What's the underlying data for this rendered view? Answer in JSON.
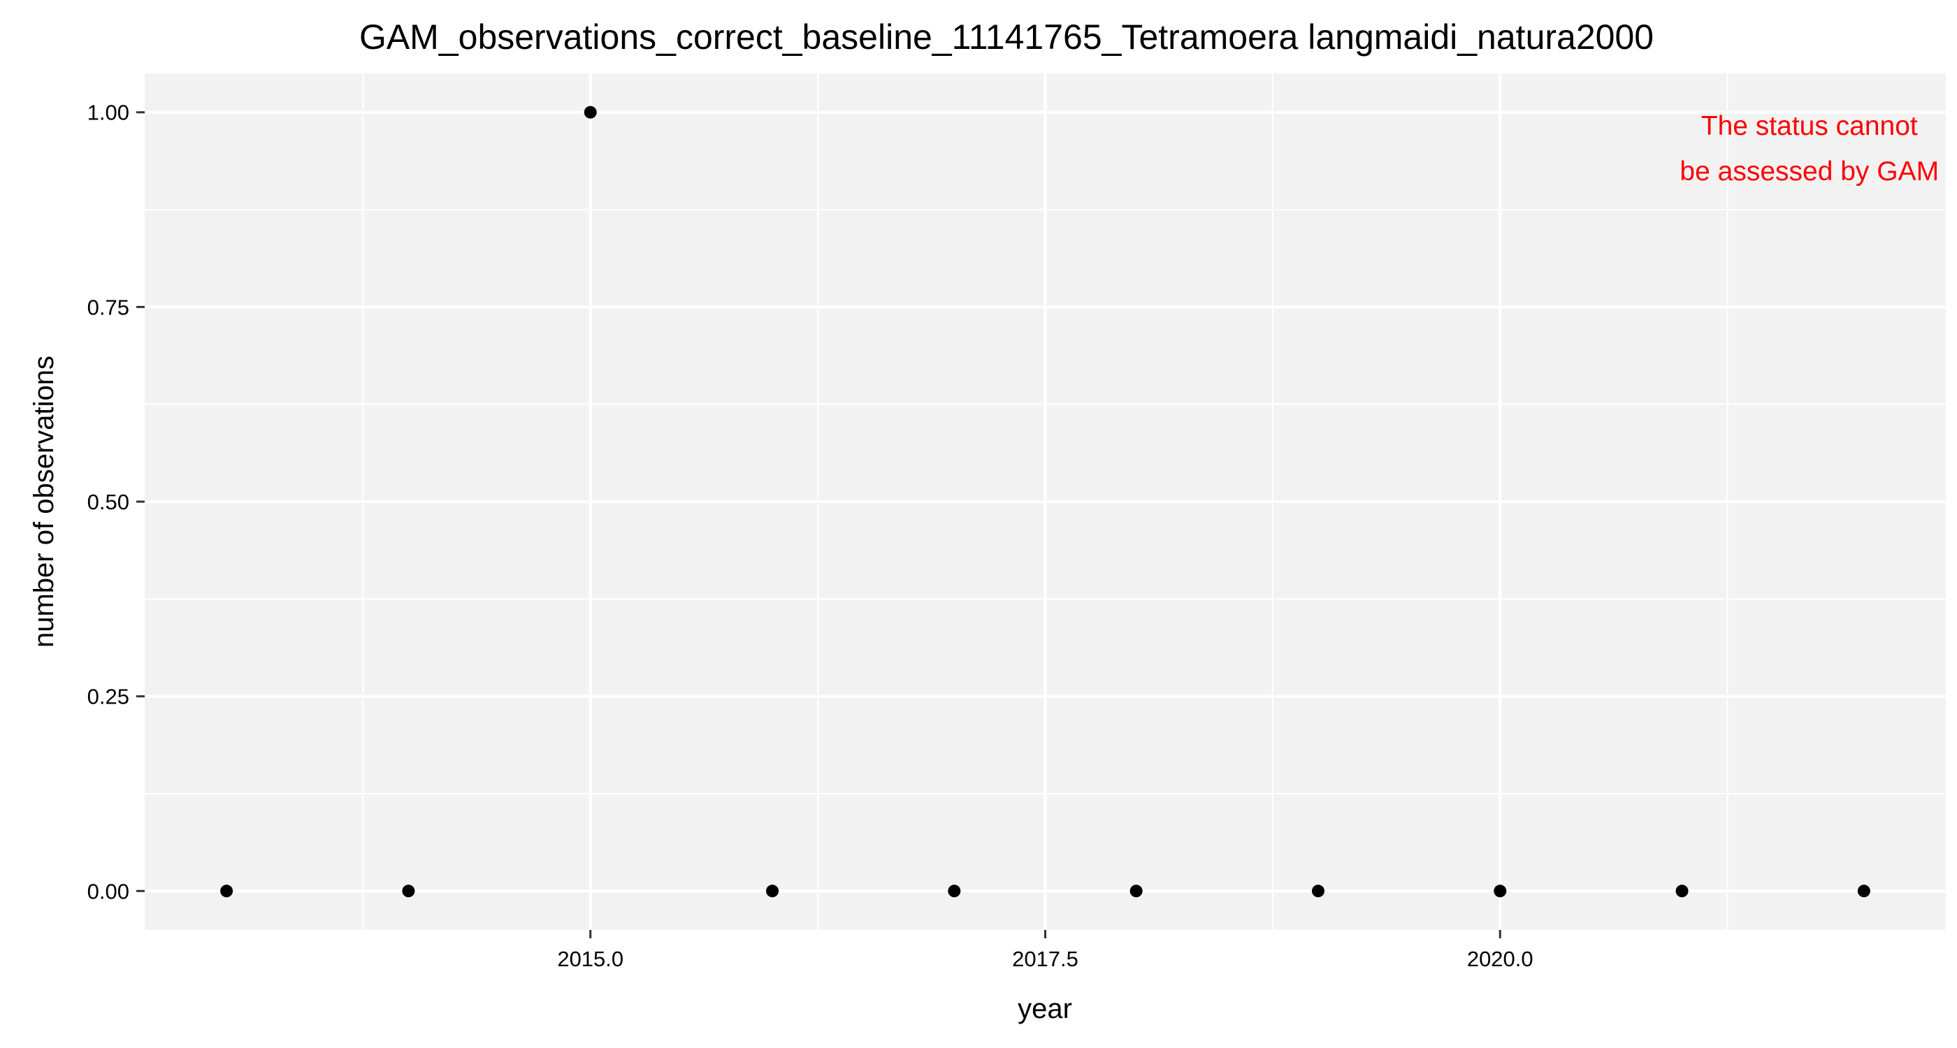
{
  "chart_data": {
    "type": "scatter",
    "title": "GAM_observations_correct_baseline_11141765_Tetramoera langmaidi_natura2000",
    "xlabel": "year",
    "ylabel": "number of observations",
    "x": [
      2013,
      2014,
      2015,
      2016,
      2017,
      2018,
      2019,
      2020,
      2021,
      2022
    ],
    "y": [
      0,
      0,
      1,
      0,
      0,
      0,
      0,
      0,
      0,
      0
    ],
    "xlim": [
      2012.55,
      2022.45
    ],
    "ylim": [
      -0.05,
      1.05
    ],
    "x_ticks": [
      2015.0,
      2017.5,
      2020.0
    ],
    "x_tick_labels": [
      "2015.0",
      "2017.5",
      "2020.0"
    ],
    "y_ticks": [
      0,
      0.25,
      0.5,
      0.75,
      1.0
    ],
    "y_tick_labels": [
      "0.00",
      "0.25",
      "0.50",
      "0.75",
      "1.00"
    ],
    "x_minor_ticks": [
      2013.75,
      2016.25,
      2018.75,
      2021.25
    ],
    "y_minor_ticks": [
      0.125,
      0.375,
      0.625,
      0.875
    ],
    "grid": true,
    "annotation": {
      "lines": [
        "The status cannot",
        "be assessed by GAM"
      ],
      "color": "#ff0000"
    },
    "colors": {
      "panel_background": "#f2f2f2",
      "grid": "#ffffff",
      "point": "#000000"
    }
  }
}
